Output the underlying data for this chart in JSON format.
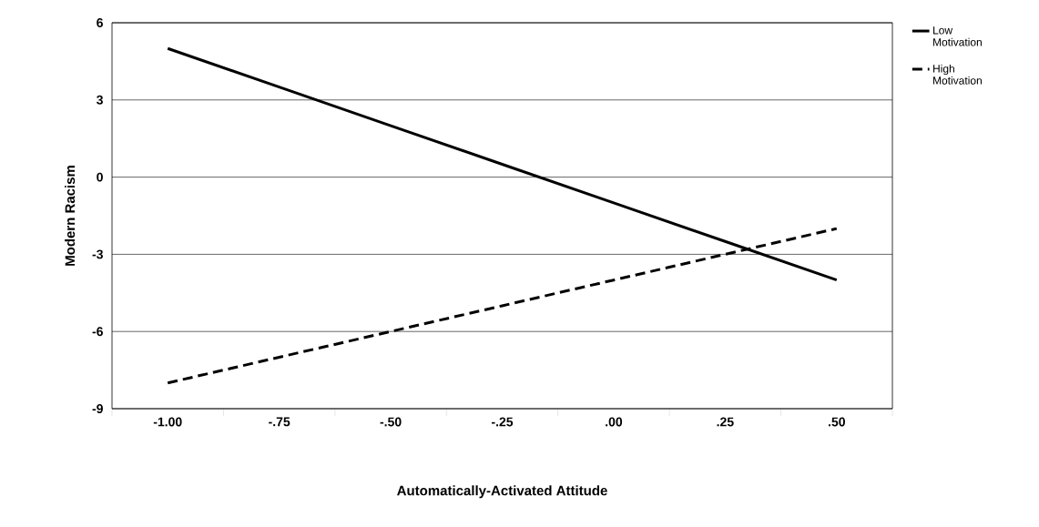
{
  "chart_data": {
    "type": "line",
    "xlabel": "Automatically-Activated Attitude",
    "ylabel": "Modern Racism",
    "categories": [
      "-1.00",
      "-.75",
      "-.50",
      "-.25",
      ".00",
      ".25",
      ".50"
    ],
    "series": [
      {
        "name": "Low Motivation",
        "color": "#000000",
        "line_style": "solid",
        "values": [
          5,
          3.5,
          2,
          0.5,
          -1,
          -2.5,
          -4
        ]
      },
      {
        "name": "High Motivation",
        "color": "#000000",
        "line_style": "dashed",
        "values": [
          -8,
          -7,
          -6,
          -5,
          -4,
          -3,
          -2
        ]
      }
    ],
    "ylim": [
      -9,
      6
    ],
    "yticks": [
      -9,
      -6,
      -3,
      0,
      3,
      6
    ],
    "grid": "y",
    "legend": "top right",
    "marker": "none"
  }
}
